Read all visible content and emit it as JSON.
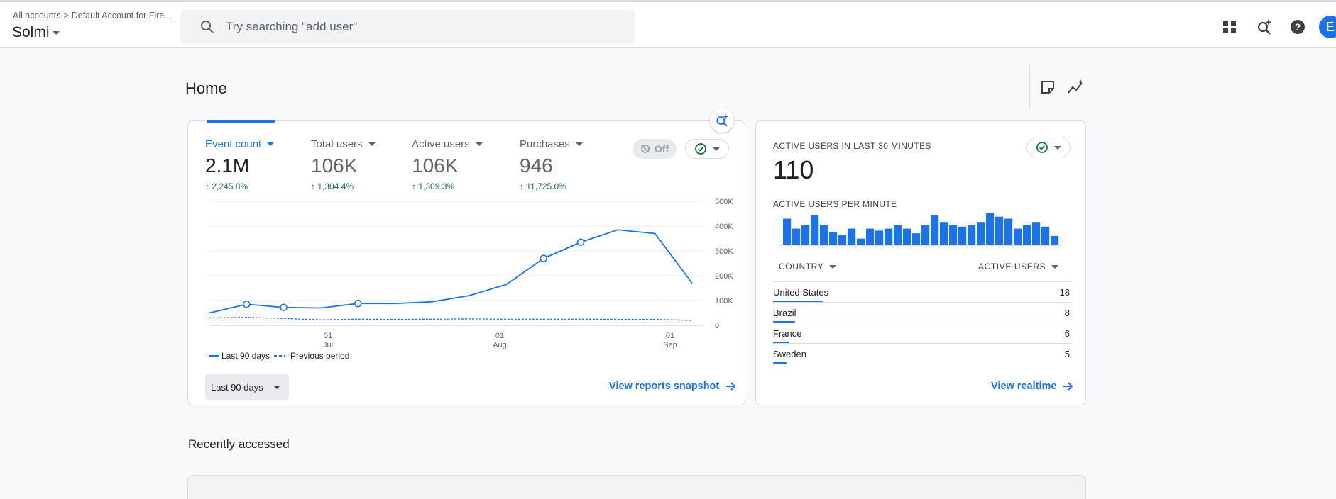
{
  "topbar": {
    "breadcrumb": [
      "All accounts",
      "Default Account for Fire..."
    ],
    "property": "Solmi",
    "search_placeholder": "Try searching \"add user\"",
    "avatar_letter": "E",
    "icons": [
      "apps-grid-icon",
      "search-insights-icon",
      "help-icon"
    ]
  },
  "page": {
    "title": "Home"
  },
  "overview": {
    "metrics": [
      {
        "label": "Event count",
        "value": "2.1M",
        "change": "2,245.8%",
        "active": true
      },
      {
        "label": "Total users",
        "value": "106K",
        "change": "1,304.4%",
        "active": false
      },
      {
        "label": "Active users",
        "value": "106K",
        "change": "1,309.3%",
        "active": false
      },
      {
        "label": "Purchases",
        "value": "946",
        "change": "11,725.0%",
        "active": false
      }
    ],
    "off_label": "Off",
    "legend": {
      "current": "Last 90 days",
      "previous": "Previous period"
    },
    "range_button": "Last 90 days",
    "link": "View reports snapshot"
  },
  "chart_data": {
    "type": "line",
    "x_ticks": [
      {
        "day": "01",
        "month": "Jul"
      },
      {
        "day": "01",
        "month": "Aug"
      },
      {
        "day": "01",
        "month": "Sep"
      }
    ],
    "y_ticks": [
      "500K",
      "400K",
      "300K",
      "200K",
      "100K",
      "0"
    ],
    "ylim": [
      0,
      500000
    ],
    "series": [
      {
        "name": "Last 90 days",
        "style": "solid",
        "values": [
          50000,
          85000,
          72000,
          70000,
          88000,
          88000,
          95000,
          120000,
          165000,
          270000,
          335000,
          385000,
          370000,
          170000
        ],
        "markers": [
          1,
          2,
          4,
          9,
          10
        ]
      },
      {
        "name": "Previous period",
        "style": "dashed",
        "values": [
          30000,
          32000,
          28000,
          22000,
          25000,
          24000,
          25000,
          26000,
          25000,
          25000,
          25000,
          24000,
          24000,
          20000
        ]
      }
    ]
  },
  "realtime": {
    "title": "ACTIVE USERS IN LAST 30 MINUTES",
    "value": "110",
    "per_minute_label": "ACTIVE USERS PER MINUTE",
    "per_minute_values": [
      4,
      2.5,
      3,
      4.5,
      3,
      2,
      1.5,
      2.5,
      1,
      2.5,
      2.2,
      2.5,
      3,
      2.5,
      1.8,
      3,
      4.5,
      3.5,
      3,
      2.8,
      3,
      3.5,
      4.8,
      4.3,
      4,
      2.5,
      3,
      3.5,
      2.8,
      1.4
    ],
    "col_country": "COUNTRY",
    "col_users": "ACTIVE USERS",
    "rows": [
      {
        "country": "United States",
        "users": "18",
        "share": 18
      },
      {
        "country": "Brazil",
        "users": "8",
        "share": 8
      },
      {
        "country": "France",
        "users": "6",
        "share": 6
      },
      {
        "country": "Sweden",
        "users": "5",
        "share": 5
      }
    ],
    "link": "View realtime"
  },
  "recent": {
    "title": "Recently accessed"
  },
  "colors": {
    "accent": "#1a73e8",
    "positive": "#137333"
  }
}
